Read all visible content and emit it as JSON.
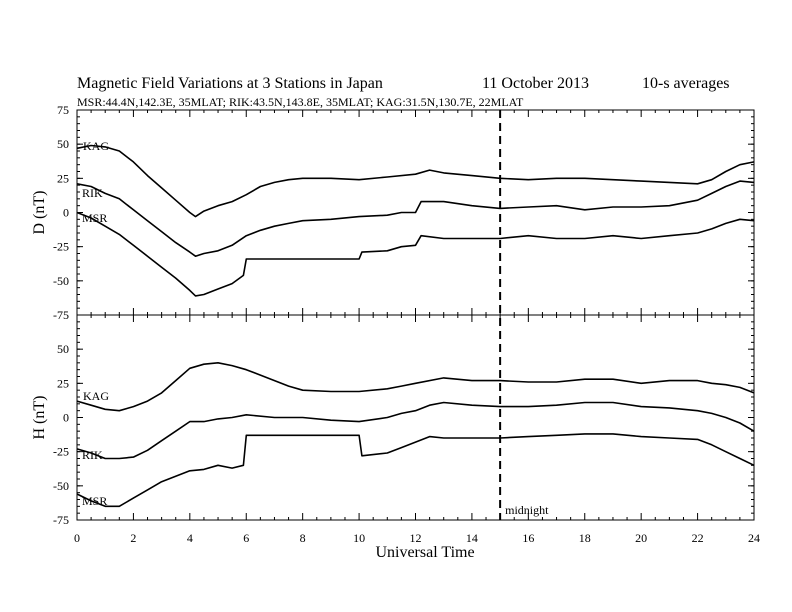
{
  "chart_data": {
    "type": "line",
    "title": "Magnetic Field Variations at 3 Stations in Japan",
    "date": "11 October 2013",
    "averaging": "10-s averages",
    "subtitle": "MSR:44.4N,142.3E, 35MLAT;  RIK:43.5N,143.8E, 35MLAT;  KAG:31.5N,130.7E, 22MLAT",
    "xlabel": "Universal Time",
    "xlim": [
      0,
      24
    ],
    "xticks": [
      "0",
      "2",
      "4",
      "6",
      "8",
      "10",
      "12",
      "14",
      "16",
      "18",
      "20",
      "22",
      "24"
    ],
    "annotation": {
      "label": "midnight",
      "x": 15
    },
    "panels": [
      {
        "ylabel": "D (nT)",
        "ylim": [
          -75,
          75
        ],
        "yticks": [
          "75",
          "50",
          "25",
          "0",
          "-25",
          "-50",
          "-75"
        ],
        "series": [
          {
            "name": "KAG",
            "x": [
              0,
              0.5,
              1,
              1.5,
              2,
              2.5,
              3,
              3.5,
              4,
              4.2,
              4.5,
              5,
              5.5,
              6,
              6.5,
              7,
              7.5,
              8,
              9,
              10,
              11,
              12,
              12.5,
              13,
              14,
              15,
              16,
              17,
              18,
              19,
              20,
              21,
              22,
              22.5,
              23,
              23.5,
              24
            ],
            "y": [
              47,
              49,
              48,
              45,
              37,
              27,
              18,
              9,
              0,
              -3,
              1,
              5,
              8,
              13,
              19,
              22,
              24,
              25,
              25,
              24,
              26,
              28,
              31,
              29,
              27,
              25,
              24,
              25,
              25,
              24,
              23,
              22,
              21,
              24,
              30,
              35,
              37
            ]
          },
          {
            "name": "RIK",
            "x": [
              0,
              0.5,
              1,
              1.5,
              2,
              2.5,
              3,
              3.5,
              4,
              4.2,
              4.5,
              5,
              5.5,
              6,
              6.5,
              7,
              7.5,
              8,
              9,
              10,
              11,
              11.5,
              12,
              12.2,
              13,
              14,
              15,
              16,
              17,
              18,
              19,
              20,
              21,
              22,
              22.5,
              23,
              23.5,
              24
            ],
            "y": [
              21,
              19,
              14,
              10,
              2,
              -6,
              -14,
              -22,
              -29,
              -32,
              -30,
              -28,
              -24,
              -17,
              -13,
              -10,
              -8,
              -6,
              -5,
              -3,
              -2,
              0,
              0,
              8,
              8,
              5,
              3,
              4,
              5,
              2,
              4,
              4,
              5,
              9,
              14,
              19,
              23,
              22
            ]
          },
          {
            "name": "MSR",
            "x": [
              0,
              0.5,
              1,
              1.5,
              2,
              2.5,
              3,
              3.5,
              4,
              4.2,
              4.5,
              5,
              5.5,
              5.9,
              6,
              10,
              10.1,
              11,
              11.5,
              12,
              12.2,
              13,
              14,
              15,
              16,
              17,
              18,
              19,
              20,
              21,
              22,
              22.5,
              23,
              23.5,
              24
            ],
            "y": [
              0,
              -4,
              -10,
              -16,
              -24,
              -32,
              -40,
              -48,
              -57,
              -61,
              -60,
              -56,
              -52,
              -46,
              -34,
              -34,
              -29,
              -28,
              -25,
              -24,
              -17,
              -19,
              -19,
              -19,
              -17,
              -19,
              -19,
              -17,
              -19,
              -17,
              -15,
              -12,
              -8,
              -5,
              -6
            ]
          }
        ]
      },
      {
        "ylabel": "H (nT)",
        "ylim": [
          -75,
          75
        ],
        "yticks": [
          "50",
          "25",
          "0",
          "-25",
          "-50",
          "-75"
        ],
        "series": [
          {
            "name": "KAG",
            "x": [
              0,
              0.5,
              1,
              1.5,
              2,
              2.5,
              3,
              3.5,
              4,
              4.5,
              5,
              5.5,
              6,
              6.5,
              7,
              7.5,
              8,
              9,
              10,
              11,
              11.5,
              12,
              13,
              14,
              15,
              16,
              17,
              18,
              19,
              20,
              21,
              22,
              22.5,
              23,
              23.5,
              24
            ],
            "y": [
              12,
              9,
              6,
              5,
              8,
              12,
              18,
              27,
              36,
              39,
              40,
              38,
              35,
              31,
              27,
              23,
              20,
              19,
              19,
              21,
              23,
              25,
              29,
              27,
              27,
              26,
              26,
              28,
              28,
              25,
              27,
              27,
              25,
              24,
              22,
              18
            ]
          },
          {
            "name": "RIK",
            "x": [
              0,
              0.5,
              1,
              1.5,
              2,
              2.5,
              3,
              3.5,
              4,
              4.5,
              5,
              5.5,
              6,
              7,
              8,
              9,
              10,
              11,
              11.5,
              12,
              12.5,
              13,
              14,
              15,
              16,
              17,
              18,
              19,
              20,
              21,
              22,
              22.5,
              23,
              23.5,
              24
            ],
            "y": [
              -23,
              -26,
              -30,
              -30,
              -29,
              -24,
              -17,
              -10,
              -3,
              -3,
              -1,
              0,
              2,
              0,
              0,
              -2,
              -3,
              0,
              3,
              5,
              9,
              11,
              9,
              8,
              8,
              9,
              11,
              11,
              8,
              7,
              5,
              3,
              0,
              -4,
              -10
            ]
          },
          {
            "name": "MSR",
            "x": [
              0,
              0.5,
              1,
              1.5,
              2,
              2.5,
              3,
              3.5,
              4,
              4.5,
              5,
              5.5,
              5.9,
              6,
              10,
              10.1,
              11,
              11.5,
              12,
              12.5,
              13,
              14,
              15,
              16,
              17,
              18,
              19,
              20,
              21,
              22,
              22.5,
              23,
              23.5,
              24
            ],
            "y": [
              -56,
              -61,
              -65,
              -65,
              -59,
              -53,
              -47,
              -43,
              -39,
              -38,
              -35,
              -37,
              -35,
              -13,
              -13,
              -28,
              -26,
              -22,
              -18,
              -14,
              -15,
              -15,
              -15,
              -14,
              -13,
              -12,
              -12,
              -14,
              -15,
              -16,
              -20,
              -25,
              -30,
              -35
            ]
          }
        ]
      }
    ]
  }
}
